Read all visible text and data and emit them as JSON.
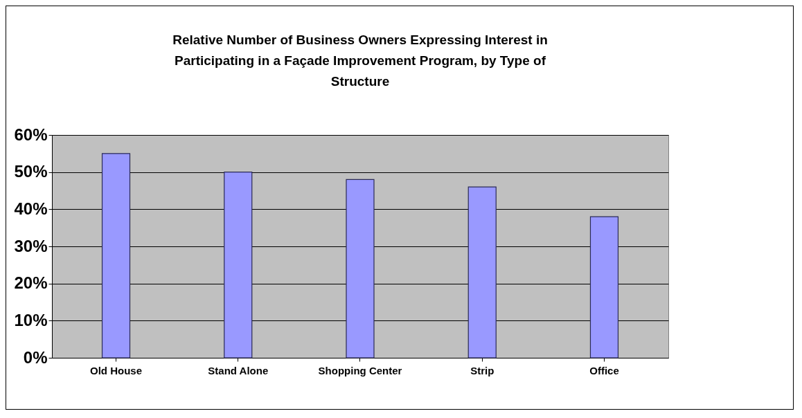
{
  "chart_data": {
    "type": "bar",
    "title": "Relative Number of Business Owners Expressing Interest in\nParticipating in a Façade Improvement Program, by Type of\nStructure",
    "categories": [
      "Old House",
      "Stand Alone",
      "Shopping Center",
      "Strip",
      "Office"
    ],
    "values": [
      55,
      50,
      48,
      46,
      38
    ],
    "color": "#9999ff",
    "ylim": [
      0,
      60
    ],
    "yticks": [
      {
        "value": 0,
        "label": "0%"
      },
      {
        "value": 10,
        "label": "10%"
      },
      {
        "value": 20,
        "label": "20%"
      },
      {
        "value": 30,
        "label": "30%"
      },
      {
        "value": 40,
        "label": "40%"
      },
      {
        "value": 50,
        "label": "50%"
      },
      {
        "value": 60,
        "label": "60%"
      }
    ],
    "grid": "y"
  }
}
